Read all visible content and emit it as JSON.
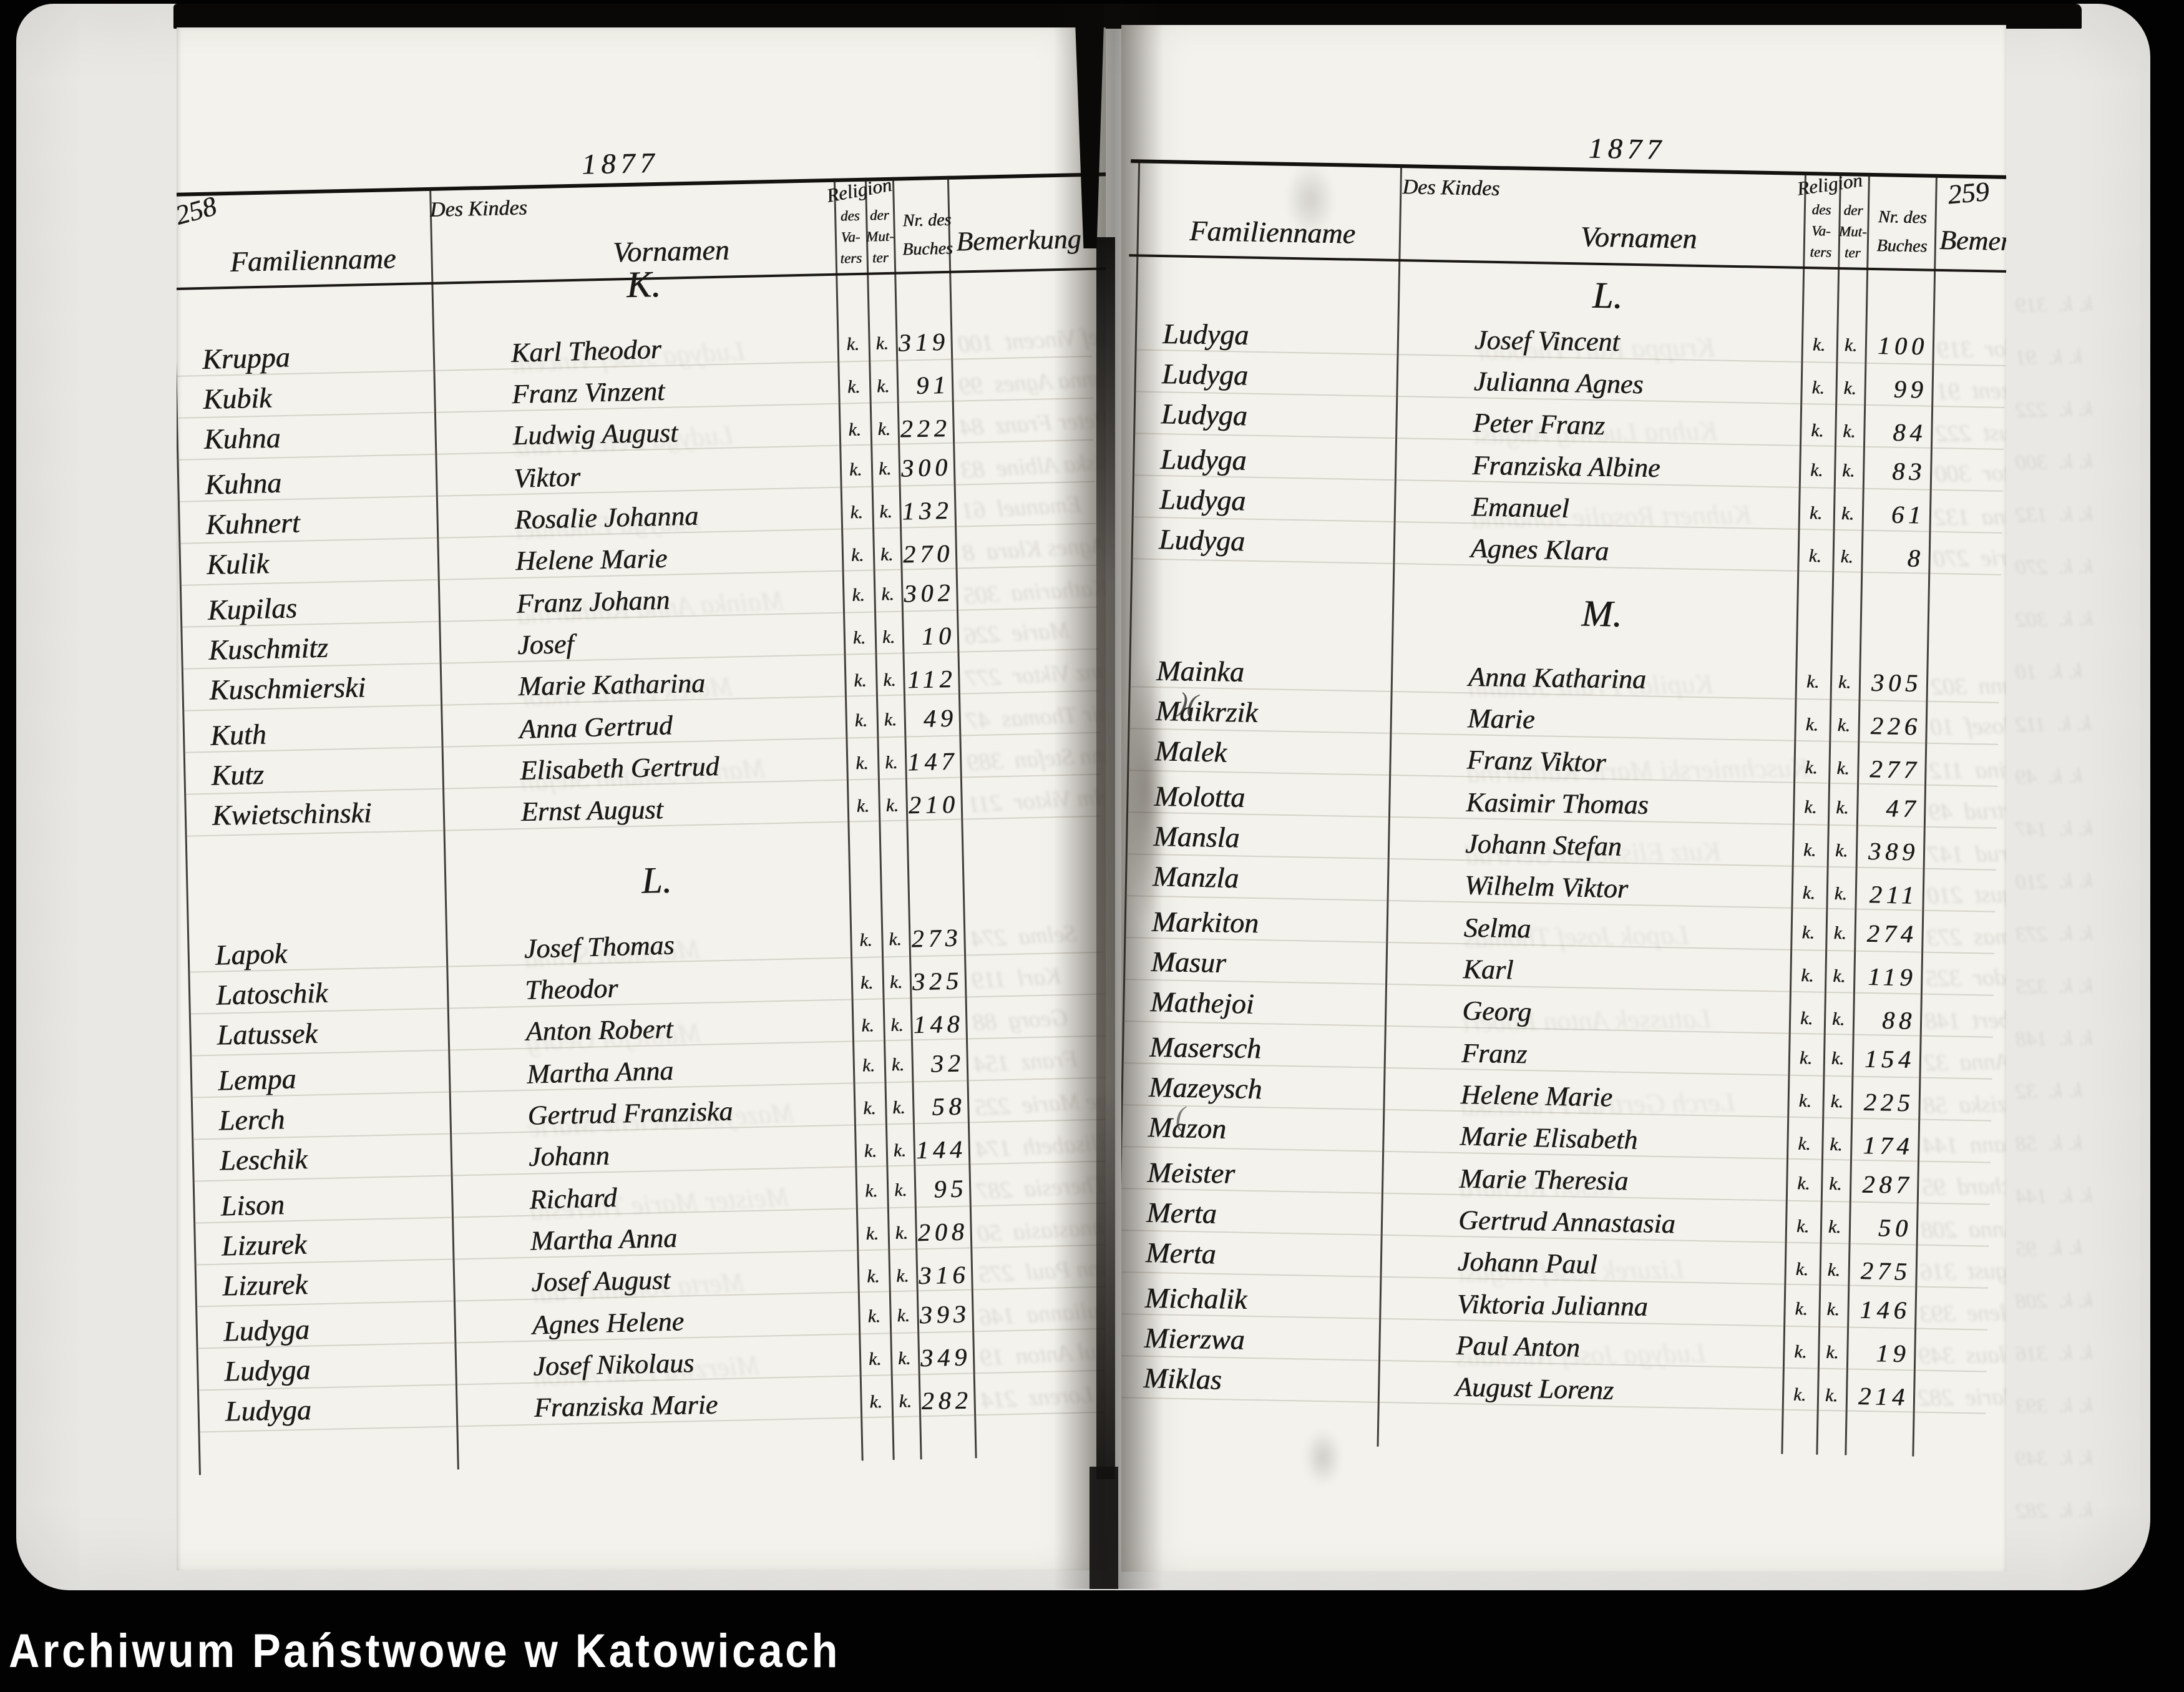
{
  "watermark": "Archiwum Państwowe w Katowicach",
  "year": "1877",
  "header": {
    "group": "Des Kindes",
    "family": "Familienname",
    "given": "Vornamen",
    "religion": "Religion",
    "rel_father": [
      "des",
      "Va-",
      "ters"
    ],
    "rel_mother": [
      "der",
      "Mut-",
      "ter"
    ],
    "book_l1": "Nr. des",
    "book_l2": "Buches",
    "remarks": "Bemerkung"
  },
  "left_page": {
    "page_number": "258",
    "sections": [
      {
        "heading": "K.",
        "rows": [
          {
            "family": "Kruppa",
            "given": "Karl Theodor",
            "rel_father": "k.",
            "rel_mother": "k.",
            "book": "319"
          },
          {
            "family": "Kubik",
            "given": "Franz Vinzent",
            "rel_father": "k.",
            "rel_mother": "k.",
            "book": "91"
          },
          {
            "family": "Kuhna",
            "given": "Ludwig August",
            "rel_father": "k.",
            "rel_mother": "k.",
            "book": "222"
          },
          {
            "family": "Kuhna",
            "given": "Viktor",
            "rel_father": "k.",
            "rel_mother": "k.",
            "book": "300"
          },
          {
            "family": "Kuhnert",
            "given": "Rosalie Johanna",
            "rel_father": "k.",
            "rel_mother": "k.",
            "book": "132"
          },
          {
            "family": "Kulik",
            "given": "Helene Marie",
            "rel_father": "k.",
            "rel_mother": "k.",
            "book": "270"
          },
          {
            "family": "Kupilas",
            "given": "Franz Johann",
            "rel_father": "k.",
            "rel_mother": "k.",
            "book": "302"
          },
          {
            "family": "Kuschmitz",
            "given": "Josef",
            "rel_father": "k.",
            "rel_mother": "k.",
            "book": "10"
          },
          {
            "family": "Kuschmierski",
            "given": "Marie Katharina",
            "rel_father": "k.",
            "rel_mother": "k.",
            "book": "112"
          },
          {
            "family": "Kuth",
            "given": "Anna Gertrud",
            "rel_father": "k.",
            "rel_mother": "k.",
            "book": "49"
          },
          {
            "family": "Kutz",
            "given": "Elisabeth Gertrud",
            "rel_father": "k.",
            "rel_mother": "k.",
            "book": "147"
          },
          {
            "family": "Kwietschinski",
            "given": "Ernst August",
            "rel_father": "k.",
            "rel_mother": "k.",
            "book": "210"
          }
        ]
      },
      {
        "heading": "L.",
        "rows": [
          {
            "family": "Lapok",
            "given": "Josef Thomas",
            "rel_father": "k.",
            "rel_mother": "k.",
            "book": "273"
          },
          {
            "family": "Latoschik",
            "given": "Theodor",
            "rel_father": "k.",
            "rel_mother": "k.",
            "book": "325"
          },
          {
            "family": "Latussek",
            "given": "Anton Robert",
            "rel_father": "k.",
            "rel_mother": "k.",
            "book": "148"
          },
          {
            "family": "Lempa",
            "given": "Martha Anna",
            "rel_father": "k.",
            "rel_mother": "k.",
            "book": "32"
          },
          {
            "family": "Lerch",
            "given": "Gertrud Franziska",
            "rel_father": "k.",
            "rel_mother": "k.",
            "book": "58"
          },
          {
            "family": "Leschik",
            "given": "Johann",
            "rel_father": "k.",
            "rel_mother": "k.",
            "book": "144"
          },
          {
            "family": "Lison",
            "given": "Richard",
            "rel_father": "k.",
            "rel_mother": "k.",
            "book": "95"
          },
          {
            "family": "Lizurek",
            "given": "Martha Anna",
            "rel_father": "k.",
            "rel_mother": "k.",
            "book": "208"
          },
          {
            "family": "Lizurek",
            "given": "Josef August",
            "rel_father": "k.",
            "rel_mother": "k.",
            "book": "316"
          },
          {
            "family": "Ludyga",
            "given": "Agnes Helene",
            "rel_father": "k.",
            "rel_mother": "k.",
            "book": "393"
          },
          {
            "family": "Ludyga",
            "given": "Josef Nikolaus",
            "rel_father": "k.",
            "rel_mother": "k.",
            "book": "349"
          },
          {
            "family": "Ludyga",
            "given": "Franziska Marie",
            "rel_father": "k.",
            "rel_mother": "k.",
            "book": "282"
          }
        ]
      }
    ]
  },
  "right_page": {
    "page_number": "259",
    "sections": [
      {
        "heading": "L.",
        "rows": [
          {
            "family": "Ludyga",
            "given": "Josef Vincent",
            "rel_father": "k.",
            "rel_mother": "k.",
            "book": "100"
          },
          {
            "family": "Ludyga",
            "given": "Julianna Agnes",
            "rel_father": "k.",
            "rel_mother": "k.",
            "book": "99"
          },
          {
            "family": "Ludyga",
            "given": "Peter Franz",
            "rel_father": "k.",
            "rel_mother": "k.",
            "book": "84"
          },
          {
            "family": "Ludyga",
            "given": "Franziska Albine",
            "rel_father": "k.",
            "rel_mother": "k.",
            "book": "83"
          },
          {
            "family": "Ludyga",
            "given": "Emanuel",
            "rel_father": "k.",
            "rel_mother": "k.",
            "book": "61"
          },
          {
            "family": "Ludyga",
            "given": "Agnes Klara",
            "rel_father": "k.",
            "rel_mother": "k.",
            "book": "8"
          }
        ]
      },
      {
        "heading": "M.",
        "rows": [
          {
            "family": "Mainka",
            "given": "Anna Katharina",
            "rel_father": "k.",
            "rel_mother": "k.",
            "book": "305"
          },
          {
            "family": "Maikrzik",
            "given": "Marie",
            "rel_father": "k.",
            "rel_mother": "k.",
            "book": "226"
          },
          {
            "family": "Malek",
            "given": "Franz Viktor",
            "rel_father": "k.",
            "rel_mother": "k.",
            "book": "277"
          },
          {
            "family": "Molotta",
            "given": "Kasimir Thomas",
            "rel_father": "k.",
            "rel_mother": "k.",
            "book": "47"
          },
          {
            "family": "Mansla",
            "given": "Johann Stefan",
            "rel_father": "k.",
            "rel_mother": "k.",
            "book": "389"
          },
          {
            "family": "Manzla",
            "given": "Wilhelm Viktor",
            "rel_father": "k.",
            "rel_mother": "k.",
            "book": "211"
          },
          {
            "family": "Markiton",
            "given": "Selma",
            "rel_father": "k.",
            "rel_mother": "k.",
            "book": "274"
          },
          {
            "family": "Masur",
            "given": "Karl",
            "rel_father": "k.",
            "rel_mother": "k.",
            "book": "119"
          },
          {
            "family": "Mathejoi",
            "given": "Georg",
            "rel_father": "k.",
            "rel_mother": "k.",
            "book": "88"
          },
          {
            "family": "Masersch",
            "given": "Franz",
            "rel_father": "k.",
            "rel_mother": "k.",
            "book": "154"
          },
          {
            "family": "Mazeysch",
            "given": "Helene Marie",
            "rel_father": "k.",
            "rel_mother": "k.",
            "book": "225"
          },
          {
            "family": "Mazon",
            "given": "Marie Elisabeth",
            "rel_father": "k.",
            "rel_mother": "k.",
            "book": "174"
          },
          {
            "family": "Meister",
            "given": "Marie Theresia",
            "rel_father": "k.",
            "rel_mother": "k.",
            "book": "287"
          },
          {
            "family": "Merta",
            "given": "Gertrud Annastasia",
            "rel_father": "k.",
            "rel_mother": "k.",
            "book": "50"
          },
          {
            "family": "Merta",
            "given": "Johann Paul",
            "rel_father": "k.",
            "rel_mother": "k.",
            "book": "275"
          },
          {
            "family": "Michalik",
            "given": "Viktoria Julianna",
            "rel_father": "k.",
            "rel_mother": "k.",
            "book": "146"
          },
          {
            "family": "Mierzwa",
            "given": "Paul Anton",
            "rel_father": "k.",
            "rel_mother": "k.",
            "book": "19"
          },
          {
            "family": "Miklas",
            "given": "August Lorenz",
            "rel_father": "k.",
            "rel_mother": "k.",
            "book": "214"
          }
        ]
      }
    ]
  },
  "binding_marks": [
    ")(",
    "("
  ]
}
